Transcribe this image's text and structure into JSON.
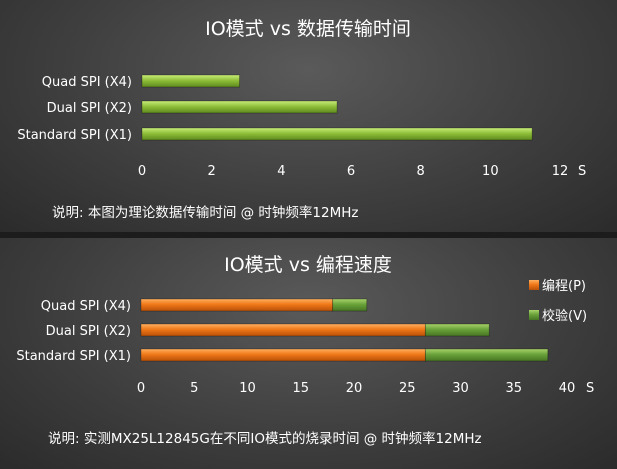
{
  "chart_data": [
    {
      "type": "bar",
      "orientation": "horizontal",
      "title": "IO模式 vs 数据传输时间",
      "categories": [
        "Quad SPI (X4)",
        "Dual SPI (X2)",
        "Standard SPI (X1)"
      ],
      "series": [
        {
          "values": [
            2.8,
            5.6,
            11.2
          ],
          "color": "#8fbf3a"
        }
      ],
      "xlim": [
        0,
        12
      ],
      "xticks": [
        0,
        2,
        4,
        6,
        8,
        10,
        12
      ],
      "xunit": "S",
      "note": "说明: 本图为理论数据传输时间 @ 时钟频率12MHz"
    },
    {
      "type": "bar",
      "orientation": "horizontal",
      "stacked": true,
      "title": "IO模式 vs 编程速度",
      "categories": [
        "Quad SPI (X4)",
        "Dual SPI (X2)",
        "Standard SPI (X1)"
      ],
      "series": [
        {
          "name": "编程(P)",
          "values": [
            18.0,
            26.7,
            26.7
          ],
          "color": "#f07818"
        },
        {
          "name": "校验(V)",
          "values": [
            3.2,
            6.0,
            11.5
          ],
          "color": "#6aa23a"
        }
      ],
      "xlim": [
        0,
        40
      ],
      "xticks": [
        0,
        5,
        10,
        15,
        20,
        25,
        30,
        35,
        40
      ],
      "xunit": "S",
      "legend": "right",
      "note": "说明: 实测MX25L12845G在不同IO模式的烧录时间 @ 时钟频率12MHz"
    }
  ]
}
